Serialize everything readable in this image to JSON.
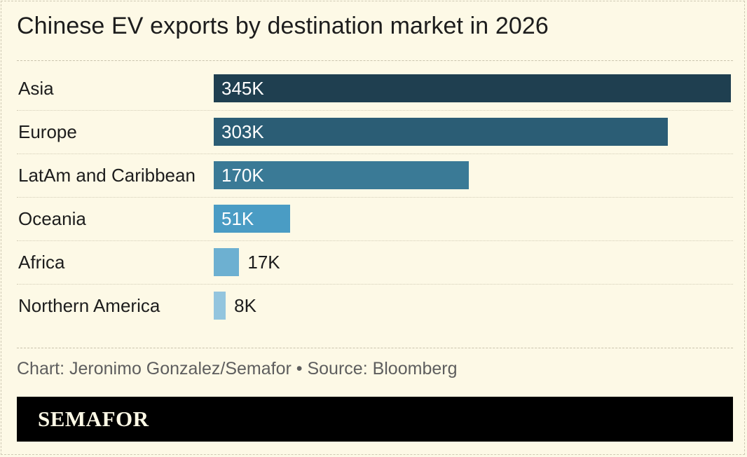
{
  "chart_data": {
    "type": "bar",
    "orientation": "horizontal",
    "title": "Chinese EV exports by destination market in 2026",
    "categories": [
      "Asia",
      "Europe",
      "LatAm and Caribbean",
      "Oceania",
      "Africa",
      "Northern America"
    ],
    "values": [
      345,
      303,
      170,
      51,
      17,
      8
    ],
    "value_labels": [
      "345K",
      "303K",
      "170K",
      "51K",
      "17K",
      "8K"
    ],
    "unit": "K",
    "xlim": [
      0,
      345
    ],
    "grid": false,
    "legend": "none",
    "bar_colors": [
      "#1f3f50",
      "#2b5d75",
      "#3a7a96",
      "#4a9cc4",
      "#6db0d1",
      "#93c5de"
    ]
  },
  "footer": {
    "source": "Chart: Jeronimo Gonzalez/Semafor • Source: Bloomberg",
    "brand": "SEMAFOR"
  }
}
